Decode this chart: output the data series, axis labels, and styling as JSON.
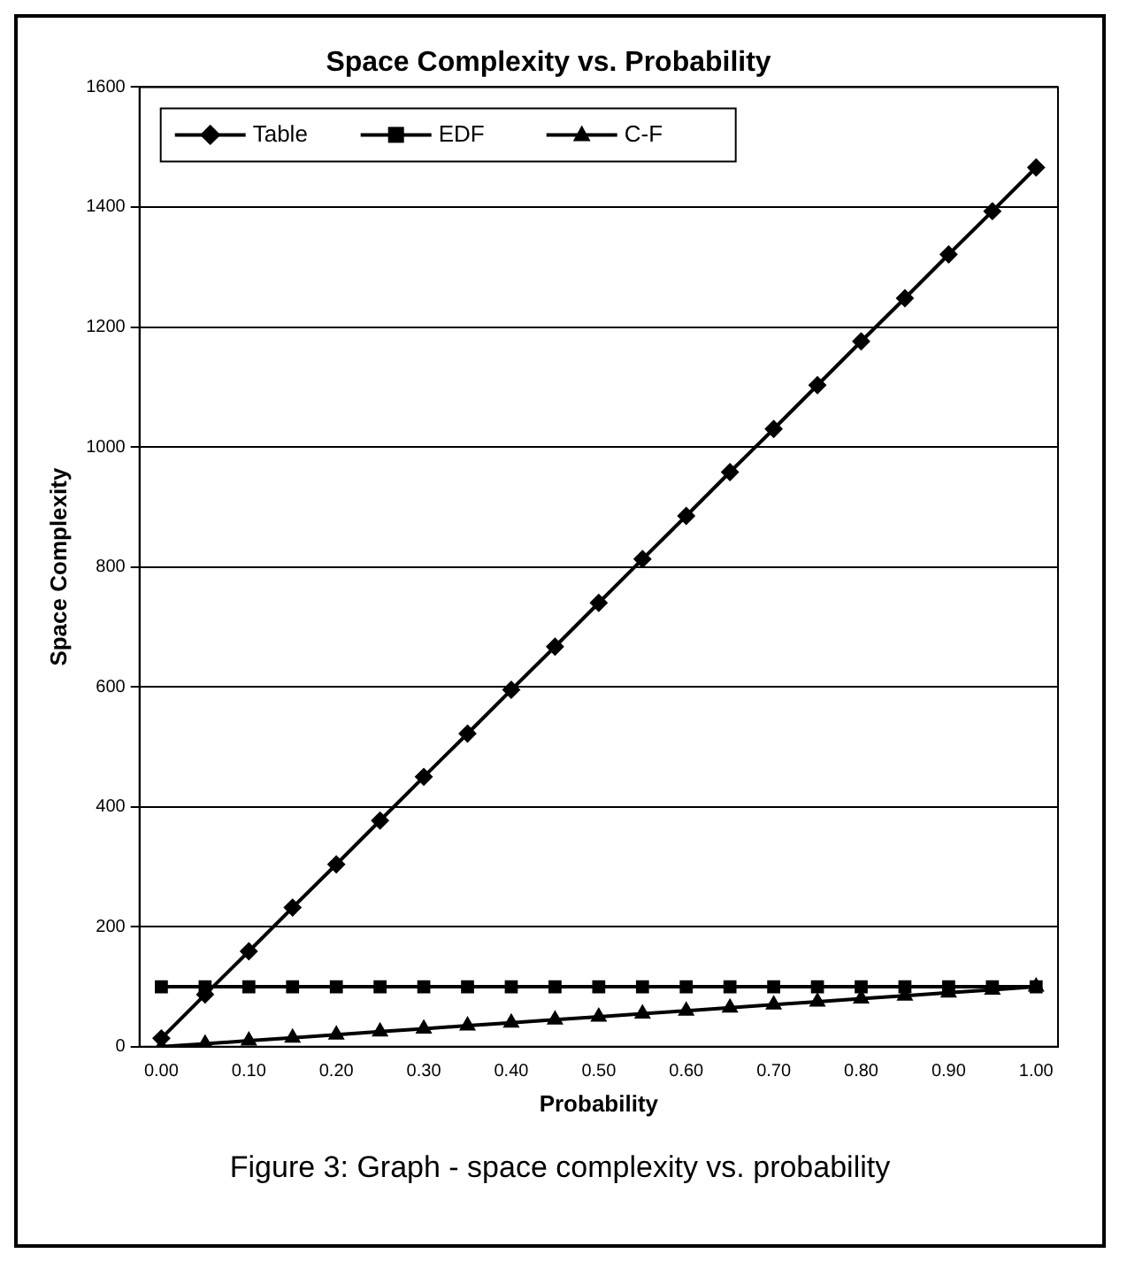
{
  "chart_data": {
    "type": "line",
    "title": "Space Complexity vs. Probability",
    "xlabel": "Probability",
    "ylabel": "Space Complexity",
    "categories": [
      "0.00",
      null,
      "0.10",
      null,
      "0.20",
      null,
      "0.30",
      null,
      "0.40",
      null,
      "0.50",
      null,
      "0.60",
      null,
      "0.70",
      null,
      "0.80",
      null,
      "0.90",
      null,
      "1.00"
    ],
    "series": [
      {
        "name": "Table",
        "color": "#000000",
        "marker": "diamond",
        "values": [
          14,
          87,
          159,
          232,
          304,
          377,
          450,
          522,
          595,
          667,
          740,
          813,
          885,
          958,
          1030,
          1103,
          1176,
          1248,
          1321,
          1393,
          1466
        ]
      },
      {
        "name": "EDF",
        "color": "#000000",
        "marker": "square",
        "values": [
          100,
          100,
          100,
          100,
          100,
          100,
          100,
          100,
          100,
          100,
          100,
          100,
          100,
          100,
          100,
          100,
          100,
          100,
          100,
          100,
          100
        ]
      },
      {
        "name": "C-F",
        "color": "#000000",
        "marker": "triangle",
        "values": [
          0,
          5,
          10,
          15,
          20,
          25,
          30,
          35,
          40,
          45,
          50,
          55,
          60,
          65,
          70,
          75,
          80,
          85,
          90,
          95,
          100
        ]
      }
    ],
    "ylim": [
      0,
      1600
    ],
    "yticks": [
      0,
      200,
      400,
      600,
      800,
      1000,
      1200,
      1400,
      1600
    ],
    "grid": "y",
    "legend": "top left",
    "line_style": "solid",
    "annotations": [
      "Figure 3: Graph - space complexity vs. probability"
    ]
  }
}
